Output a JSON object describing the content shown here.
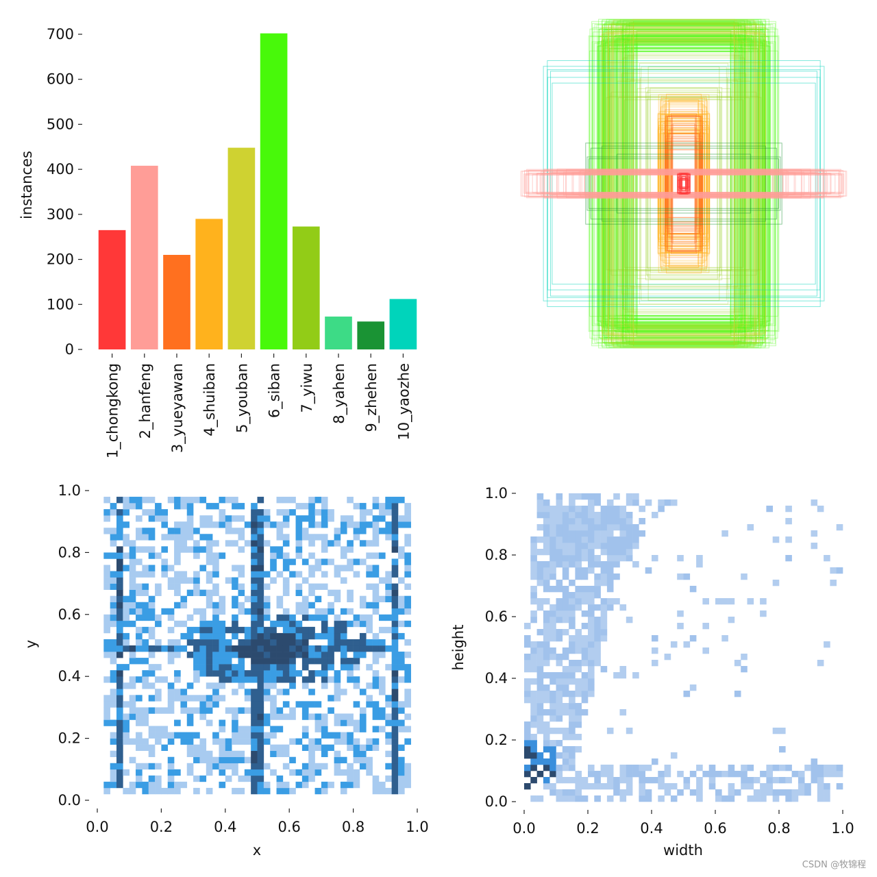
{
  "watermark": "CSDN @牧锦程",
  "chart_data": [
    {
      "type": "bar",
      "title": "",
      "xlabel": "",
      "ylabel": "instances",
      "ylim": [
        0,
        700
      ],
      "yticks": [
        "0",
        "100",
        "200",
        "300",
        "400",
        "500",
        "600",
        "700"
      ],
      "categories": [
        "1_chongkong",
        "2_hanfeng",
        "3_yueyawan",
        "4_shuiban",
        "5_youban",
        "6_siban",
        "7_yiwu",
        "8_yahen",
        "9_zhehen",
        "10_yaozhe"
      ],
      "values": [
        265,
        408,
        210,
        290,
        448,
        702,
        273,
        73,
        62,
        112
      ],
      "colors": [
        "#ff3838",
        "#ff9d97",
        "#ff701f",
        "#ffb21d",
        "#cfd231",
        "#48f90a",
        "#92cc17",
        "#3ddb86",
        "#1a9334",
        "#00d4bb"
      ]
    },
    {
      "type": "boxes",
      "title": "",
      "description_free": true,
      "class_colors": [
        "#ff3838",
        "#ff9d97",
        "#ff701f",
        "#ffb21d",
        "#cfd231",
        "#48f90a",
        "#92cc17",
        "#3ddb86",
        "#1a9334",
        "#00d4bb"
      ]
    },
    {
      "type": "heatmap",
      "xlabel": "x",
      "ylabel": "y",
      "xlim": [
        0,
        1
      ],
      "ylim": [
        0,
        1
      ],
      "xticks": [
        "0.0",
        "0.2",
        "0.4",
        "0.6",
        "0.8",
        "1.0"
      ],
      "yticks": [
        "0.0",
        "0.2",
        "0.4",
        "0.6",
        "0.8",
        "1.0"
      ],
      "bins": 50,
      "color_scale": [
        "#a8cbf0",
        "#3a9de4",
        "#2f5f8f",
        "#2c4a6e"
      ],
      "dense_lines_x": [
        0.07,
        0.5,
        0.93
      ],
      "dense_lines_y": [
        0.49
      ],
      "dense_center": [
        0.55,
        0.49
      ]
    },
    {
      "type": "heatmap",
      "xlabel": "width",
      "ylabel": "height",
      "xlim": [
        0,
        1
      ],
      "ylim": [
        0,
        1
      ],
      "xticks": [
        "0.0",
        "0.2",
        "0.4",
        "0.6",
        "0.8",
        "1.0"
      ],
      "yticks": [
        "0.0",
        "0.2",
        "0.4",
        "0.6",
        "0.8",
        "1.0"
      ],
      "bins": 50,
      "color_scale": [
        "#b2cdef",
        "#a1c2ec",
        "#3a8fdc",
        "#2c4a6e"
      ],
      "dense_corner": [
        0.03,
        0.06
      ]
    }
  ]
}
